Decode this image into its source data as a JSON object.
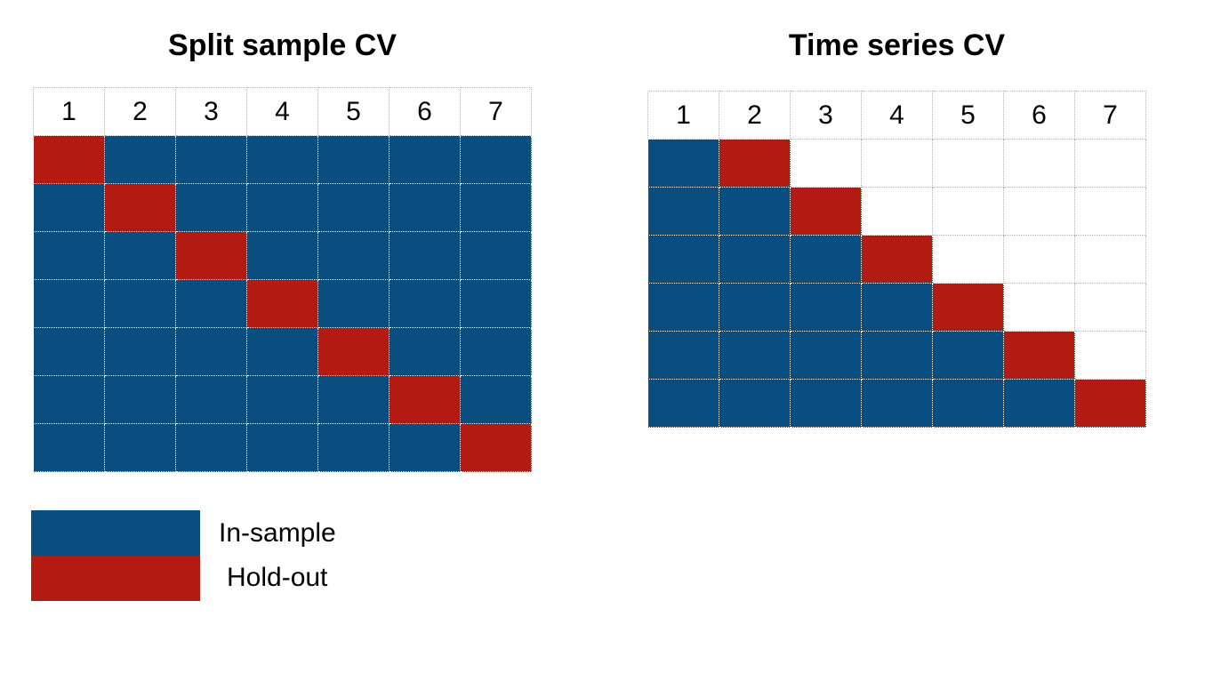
{
  "colors": {
    "in_sample": "#0a4e7f",
    "hold_out": "#b21a12"
  },
  "diagrams": [
    {
      "title": "Split sample CV",
      "columns": [
        "1",
        "2",
        "3",
        "4",
        "5",
        "6",
        "7"
      ],
      "rows": [
        [
          "hold",
          "ins",
          "ins",
          "ins",
          "ins",
          "ins",
          "ins"
        ],
        [
          "ins",
          "hold",
          "ins",
          "ins",
          "ins",
          "ins",
          "ins"
        ],
        [
          "ins",
          "ins",
          "hold",
          "ins",
          "ins",
          "ins",
          "ins"
        ],
        [
          "ins",
          "ins",
          "ins",
          "hold",
          "ins",
          "ins",
          "ins"
        ],
        [
          "ins",
          "ins",
          "ins",
          "ins",
          "hold",
          "ins",
          "ins"
        ],
        [
          "ins",
          "ins",
          "ins",
          "ins",
          "ins",
          "hold",
          "ins"
        ],
        [
          "ins",
          "ins",
          "ins",
          "ins",
          "ins",
          "ins",
          "hold"
        ]
      ]
    },
    {
      "title": "Time series CV",
      "columns": [
        "1",
        "2",
        "3",
        "4",
        "5",
        "6",
        "7"
      ],
      "rows": [
        [
          "ins",
          "hold",
          "empty",
          "empty",
          "empty",
          "empty",
          "empty"
        ],
        [
          "ins",
          "ins",
          "hold",
          "empty",
          "empty",
          "empty",
          "empty"
        ],
        [
          "ins",
          "ins",
          "ins",
          "hold",
          "empty",
          "empty",
          "empty"
        ],
        [
          "ins",
          "ins",
          "ins",
          "ins",
          "hold",
          "empty",
          "empty"
        ],
        [
          "ins",
          "ins",
          "ins",
          "ins",
          "ins",
          "hold",
          "empty"
        ],
        [
          "ins",
          "ins",
          "ins",
          "ins",
          "ins",
          "ins",
          "hold"
        ]
      ]
    }
  ],
  "legend": {
    "in_sample_label": "In-sample",
    "hold_out_label": "Hold-out"
  }
}
